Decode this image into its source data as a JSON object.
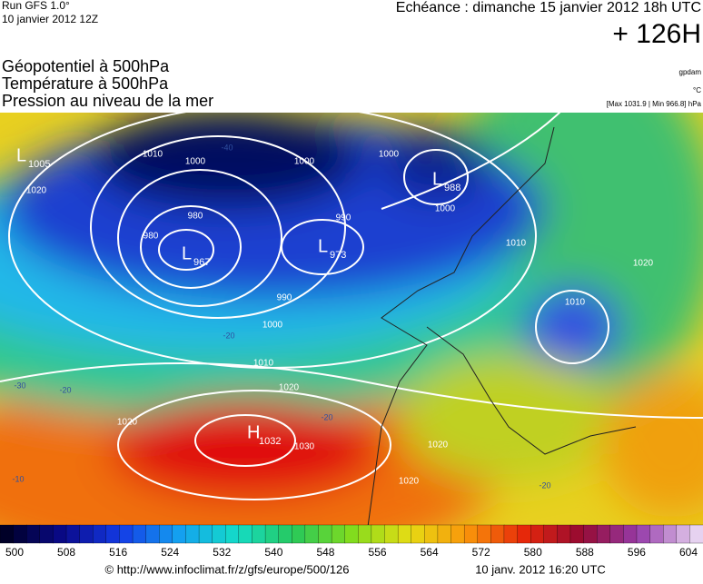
{
  "header": {
    "run": "Run GFS 1.0°",
    "run_date": "10 janvier 2012 12Z",
    "echeance": "Echéance : dimanche 15 janvier 2012 18h UTC",
    "lead": "+ 126H",
    "fields": [
      "Géopotentiel à 500hPa",
      "Température à 500hPa",
      "Pression au niveau de la mer"
    ],
    "units": [
      "gpdam",
      "°C",
      "[Max 1031.9 | Min 966.8] hPa"
    ]
  },
  "map": {
    "centers": [
      {
        "type": "L",
        "value": "1005"
      },
      {
        "type": "L",
        "value": "967"
      },
      {
        "type": "L",
        "value": "973"
      },
      {
        "type": "L",
        "value": "988"
      },
      {
        "type": "H",
        "value": "1032"
      }
    ],
    "contour_labels": [
      "1010",
      "1000",
      "980",
      "990",
      "1000",
      "1000",
      "1000",
      "990",
      "1000",
      "1010",
      "1020",
      "1020",
      "1030",
      "1020",
      "1020",
      "1010",
      "1020",
      "1010",
      "980",
      "1020"
    ],
    "temperature_labels": [
      "-40",
      "-20",
      "-30",
      "-20",
      "-20",
      "-20",
      "-10"
    ]
  },
  "colorbar": {
    "labels": [
      "500",
      "508",
      "516",
      "524",
      "532",
      "540",
      "548",
      "556",
      "564",
      "572",
      "580",
      "588",
      "596",
      "604"
    ]
  },
  "footer": {
    "url": "© http://www.infoclimat.fr/z/gfs/europe/500/126",
    "timestamp": "10 janv. 2012 16:20 UTC"
  }
}
